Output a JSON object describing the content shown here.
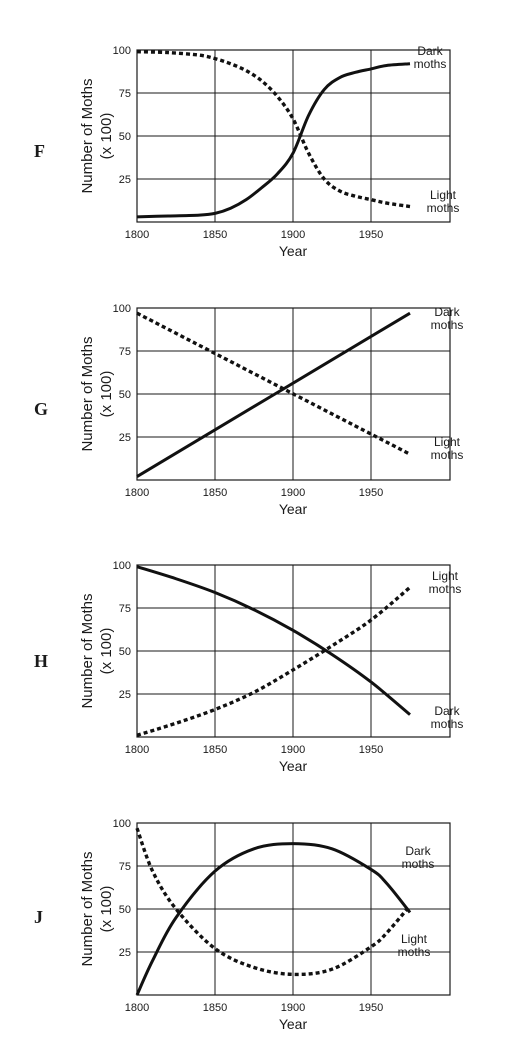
{
  "chart_data": [
    {
      "type": "line",
      "option": "F",
      "xlabel": "Year",
      "ylabel": [
        "Number of Moths",
        "(x 100)"
      ],
      "xlim": [
        1800,
        1975
      ],
      "ylim": [
        0,
        100
      ],
      "xticks": [
        1800,
        1850,
        1900,
        1950
      ],
      "yticks": [
        25,
        50,
        75,
        100
      ],
      "grid": true,
      "series": [
        {
          "name": "Dark moths",
          "label": [
            "Dark",
            "moths"
          ],
          "style": "solid",
          "x": [
            1800,
            1820,
            1840,
            1850,
            1860,
            1870,
            1880,
            1890,
            1900,
            1910,
            1920,
            1930,
            1940,
            1950,
            1960,
            1975
          ],
          "y": [
            3,
            3.5,
            4,
            5,
            8,
            13,
            20,
            28,
            40,
            62,
            77,
            84,
            87,
            89,
            91,
            92
          ]
        },
        {
          "name": "Light moths",
          "label": [
            "Light",
            "moths"
          ],
          "style": "dashed",
          "x": [
            1800,
            1820,
            1840,
            1850,
            1860,
            1870,
            1880,
            1890,
            1900,
            1910,
            1920,
            1930,
            1940,
            1950,
            1960,
            1975
          ],
          "y": [
            99,
            98.5,
            97,
            95,
            92,
            88,
            82,
            73,
            60,
            40,
            25,
            18,
            15,
            13,
            11,
            9
          ]
        }
      ]
    },
    {
      "type": "line",
      "option": "G",
      "xlabel": "Year",
      "ylabel": [
        "Number of Moths",
        "(x 100)"
      ],
      "xlim": [
        1800,
        1975
      ],
      "ylim": [
        0,
        100
      ],
      "xticks": [
        1800,
        1850,
        1900,
        1950
      ],
      "yticks": [
        25,
        50,
        75,
        100
      ],
      "grid": true,
      "series": [
        {
          "name": "Dark moths",
          "label": [
            "Dark",
            "moths"
          ],
          "style": "solid",
          "x": [
            1800,
            1975
          ],
          "y": [
            2,
            97
          ]
        },
        {
          "name": "Light moths",
          "label": [
            "Light",
            "moths"
          ],
          "style": "dashed",
          "x": [
            1800,
            1975
          ],
          "y": [
            97,
            15
          ]
        }
      ]
    },
    {
      "type": "line",
      "option": "H",
      "xlabel": "Year",
      "ylabel": [
        "Number of Moths",
        "(x 100)"
      ],
      "xlim": [
        1800,
        1975
      ],
      "ylim": [
        0,
        100
      ],
      "xticks": [
        1800,
        1850,
        1900,
        1950
      ],
      "yticks": [
        25,
        50,
        75,
        100
      ],
      "grid": true,
      "series": [
        {
          "name": "Light moths",
          "label": [
            "Light",
            "moths"
          ],
          "style": "dashed",
          "x": [
            1800,
            1825,
            1850,
            1875,
            1900,
            1925,
            1950,
            1975
          ],
          "y": [
            1,
            8,
            16,
            26,
            39,
            53,
            68,
            87
          ]
        },
        {
          "name": "Dark moths",
          "label": [
            "Dark",
            "moths"
          ],
          "style": "solid",
          "x": [
            1800,
            1825,
            1850,
            1875,
            1900,
            1925,
            1950,
            1975
          ],
          "y": [
            99,
            92,
            84,
            74,
            62,
            48,
            32,
            13
          ]
        }
      ]
    },
    {
      "type": "line",
      "option": "J",
      "xlabel": "Year",
      "ylabel": [
        "Number of Moths",
        "(x 100)"
      ],
      "xlim": [
        1800,
        1975
      ],
      "ylim": [
        0,
        100
      ],
      "xticks": [
        1800,
        1850,
        1900,
        1950
      ],
      "yticks": [
        25,
        50,
        75,
        100
      ],
      "grid": true,
      "series": [
        {
          "name": "Dark moths",
          "label": [
            "Dark",
            "moths"
          ],
          "style": "solid",
          "x": [
            1800,
            1810,
            1825,
            1850,
            1875,
            1900,
            1925,
            1950,
            1960,
            1975
          ],
          "y": [
            0,
            20,
            45,
            72,
            85,
            88,
            85,
            73,
            65,
            48
          ]
        },
        {
          "name": "Light moths",
          "label": [
            "Light",
            "moths"
          ],
          "style": "dashed",
          "x": [
            1800,
            1810,
            1825,
            1850,
            1875,
            1900,
            1925,
            1950,
            1960,
            1975
          ],
          "y": [
            97,
            72,
            50,
            27,
            16,
            12,
            15,
            28,
            36,
            52
          ]
        }
      ]
    }
  ]
}
